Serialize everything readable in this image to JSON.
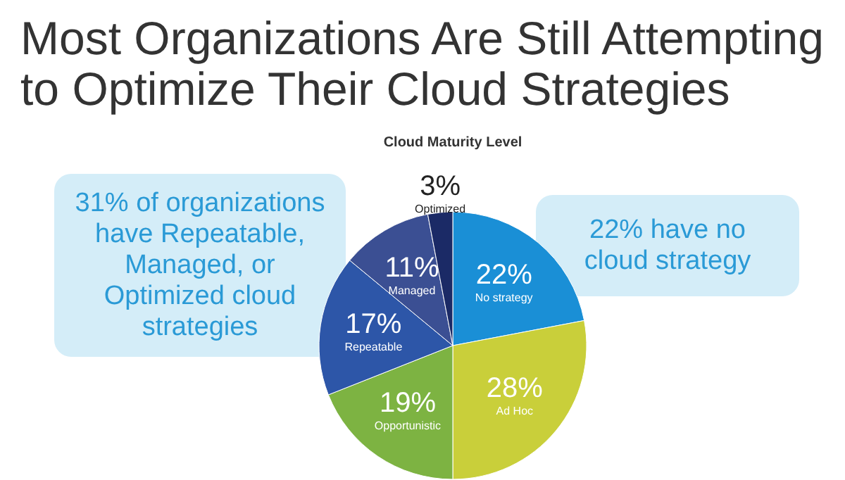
{
  "chart_data": {
    "type": "pie",
    "title": "Most Organizations Are Still Attempting\nto Optimize Their Cloud Strategies",
    "subtitle": "Cloud Maturity Level",
    "categories": [
      "No strategy",
      "Ad Hoc",
      "Opportunistic",
      "Repeatable",
      "Managed",
      "Optimized"
    ],
    "values": [
      22,
      28,
      19,
      17,
      11,
      3
    ],
    "colors": [
      "#1a8fd6",
      "#c9cf3a",
      "#7db342",
      "#2d56a8",
      "#3b4f93",
      "#1b2a66"
    ],
    "value_labels": [
      "22%",
      "28%",
      "19%",
      "17%",
      "11%",
      "3%"
    ],
    "annotations": [
      "31% of organizations\nhave Repeatable,\nManaged, or\nOptimized cloud\nstrategies",
      "22% have no\ncloud strategy"
    ]
  }
}
